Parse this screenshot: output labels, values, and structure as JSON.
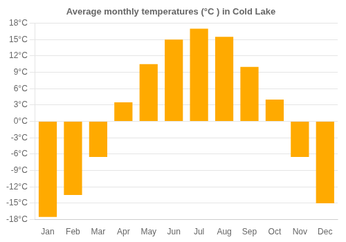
{
  "chart_data": {
    "type": "bar",
    "title": "Average monthly temperatures (°C ) in Cold Lake",
    "categories": [
      "Jan",
      "Feb",
      "Mar",
      "Apr",
      "May",
      "Jun",
      "Jul",
      "Aug",
      "Sep",
      "Oct",
      "Nov",
      "Dec"
    ],
    "values": [
      -17.5,
      -13.5,
      -6.5,
      3.5,
      10.5,
      15.0,
      17.0,
      15.5,
      10.0,
      4.0,
      -6.5,
      -15.0
    ],
    "color": "#FFAA00",
    "ylim": [
      -18,
      18
    ],
    "yticks": [
      {
        "value": -18,
        "label": "-18°C"
      },
      {
        "value": -15,
        "label": "-15°C"
      },
      {
        "value": -12,
        "label": "-12°C"
      },
      {
        "value": -9,
        "label": "-9°C"
      },
      {
        "value": -6,
        "label": "-6°C"
      },
      {
        "value": -3,
        "label": "-3°C"
      },
      {
        "value": 0,
        "label": "0°C"
      },
      {
        "value": 3,
        "label": "3°C"
      },
      {
        "value": 6,
        "label": "6°C"
      },
      {
        "value": 9,
        "label": "9°C"
      },
      {
        "value": 12,
        "label": "12°C"
      },
      {
        "value": 15,
        "label": "15°C"
      },
      {
        "value": 18,
        "label": "18°C"
      }
    ],
    "grid": true
  }
}
